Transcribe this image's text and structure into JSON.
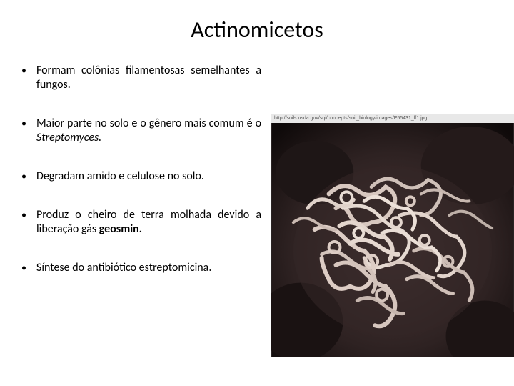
{
  "title": "Actinomicetos",
  "bullets": [
    {
      "html": "Formam colônias filamentosas semelhantes a fungos."
    },
    {
      "html": "Maior parte no solo e o gênero mais comum é o <span class=\"italic\">Streptomyces.</span>"
    },
    {
      "html": "Degradam amido e celulose no solo."
    },
    {
      "html": "Produz o cheiro de terra molhada devido a liberação gás <span class=\"bold\">geosmin.</span>"
    },
    {
      "html": "Síntese do antibiótico estreptomicina."
    }
  ],
  "image": {
    "url_text": "http://soils.usda.gov/sqi/concepts/soil_biology/images/E55431_lf1.jpg",
    "bg_dark": "#1a1414",
    "bg_mid": "#3a2f2f",
    "filament_light": "#e8dcd6",
    "filament_mid": "#c4b0a8",
    "filament_shadow": "#8a7670"
  },
  "colors": {
    "background": "#ffffff",
    "text": "#000000"
  },
  "fonts": {
    "title_size": 32,
    "body_size": 16
  }
}
